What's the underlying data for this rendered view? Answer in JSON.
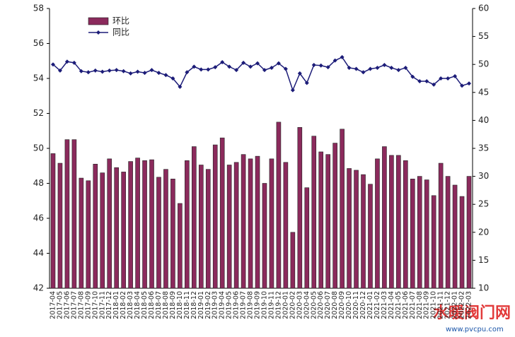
{
  "chart_data": {
    "type": "bar-line",
    "categories": [
      "2017-04",
      "2017-05",
      "2017-06",
      "2017-07",
      "2017-08",
      "2017-09",
      "2017-10",
      "2017-11",
      "2017-12",
      "2018-01",
      "2018-02",
      "2018-03",
      "2018-04",
      "2018-05",
      "2018-06",
      "2018-07",
      "2018-08",
      "2018-09",
      "2018-10",
      "2018-11",
      "2018-12",
      "2019-01",
      "2019-02",
      "2019-03",
      "2019-04",
      "2019-05",
      "2019-06",
      "2019-07",
      "2019-08",
      "2019-09",
      "2019-10",
      "2019-11",
      "2019-12",
      "2020-01",
      "2020-02",
      "2020-03",
      "2020-04",
      "2020-05",
      "2020-06",
      "2020-07",
      "2020-08",
      "2020-09",
      "2020-10",
      "2020-11",
      "2020-12",
      "2021-01",
      "2021-02",
      "2021-03",
      "2021-04",
      "2021-05",
      "2021-06",
      "2021-07",
      "2021-08",
      "2021-09",
      "2021-10",
      "2021-11",
      "2021-12",
      "2022-01",
      "2022-02",
      "2022-03"
    ],
    "series": [
      {
        "name": "环比",
        "kind": "bar",
        "color": "#8b2a5c",
        "values": [
          49.7,
          49.15,
          50.5,
          50.5,
          48.3,
          48.15,
          49.1,
          48.6,
          49.4,
          48.9,
          48.65,
          49.25,
          49.45,
          49.3,
          49.35,
          48.35,
          48.8,
          48.25,
          46.85,
          49.3,
          50.1,
          49.05,
          48.8,
          50.2,
          50.6,
          49.05,
          49.2,
          49.65,
          49.4,
          49.55,
          48.0,
          49.4,
          51.5,
          49.2,
          45.2,
          51.2,
          47.75,
          50.7,
          49.8,
          49.65,
          50.3,
          51.1,
          48.85,
          48.75,
          48.5,
          47.95,
          49.4,
          50.1,
          49.6,
          49.6,
          49.3,
          48.25,
          48.4,
          48.2,
          47.3,
          49.15,
          48.4,
          47.9,
          47.25,
          48.4
        ]
      },
      {
        "name": "同比",
        "kind": "line",
        "axis": "y2",
        "color": "#1c1c78",
        "values": [
          50.0,
          48.9,
          50.5,
          50.3,
          48.8,
          48.6,
          48.9,
          48.7,
          48.9,
          49.0,
          48.8,
          48.4,
          48.7,
          48.5,
          49.0,
          48.5,
          48.1,
          47.5,
          46.0,
          48.6,
          49.6,
          49.1,
          49.1,
          49.5,
          50.4,
          49.6,
          49.0,
          50.3,
          49.6,
          50.2,
          49.0,
          49.4,
          50.2,
          49.2,
          45.4,
          48.4,
          46.7,
          49.9,
          49.8,
          49.5,
          50.7,
          51.3,
          49.4,
          49.2,
          48.6,
          49.2,
          49.4,
          49.9,
          49.4,
          49.0,
          49.4,
          47.8,
          47.0,
          47.0,
          46.4,
          47.5,
          47.5,
          47.9,
          46.2,
          46.6
        ]
      }
    ],
    "ylim": [
      42,
      58
    ],
    "yticks": [
      42,
      44,
      46,
      48,
      50,
      52,
      54,
      56,
      58
    ],
    "y2lim": [
      10,
      60
    ],
    "y2ticks": [
      10,
      15,
      20,
      25,
      30,
      35,
      40,
      45,
      50,
      55,
      60
    ],
    "grid": false,
    "legend": "top-left",
    "watermark": {
      "title": "水暖阀门网",
      "url": "www.pvcpu.com"
    }
  }
}
